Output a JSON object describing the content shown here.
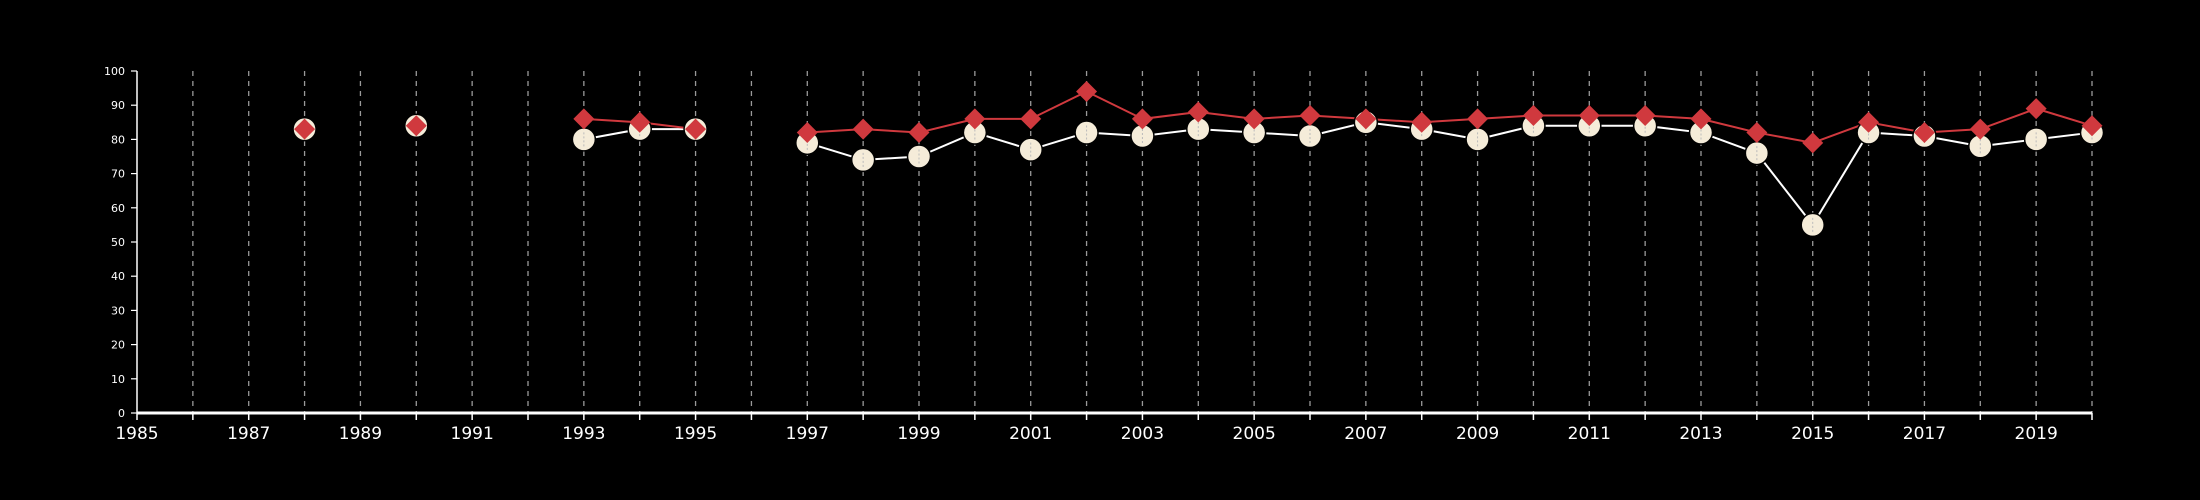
{
  "chart_data": {
    "type": "line",
    "x": [
      1988,
      1990,
      1993,
      1994,
      1995,
      1997,
      1998,
      1999,
      2000,
      2001,
      2002,
      2003,
      2004,
      2005,
      2006,
      2007,
      2008,
      2009,
      2010,
      2011,
      2012,
      2013,
      2014,
      2015,
      2016,
      2017,
      2018,
      2019,
      2020
    ],
    "series": [
      {
        "marker": "circle",
        "color": "#f5ecd9",
        "line_color": "#ffffff",
        "values": [
          83,
          84,
          80,
          83,
          83,
          79,
          74,
          75,
          82,
          77,
          82,
          81,
          83,
          82,
          81,
          85,
          83,
          80,
          84,
          84,
          84,
          82,
          76,
          55,
          82,
          81,
          78,
          80,
          82
        ]
      },
      {
        "marker": "diamond",
        "color": "#d0393e",
        "line_color": "#d0393e",
        "values": [
          83,
          84,
          86,
          85,
          83,
          82,
          83,
          82,
          86,
          86,
          94,
          86,
          88,
          86,
          87,
          86,
          85,
          86,
          87,
          87,
          87,
          86,
          82,
          79,
          85,
          82,
          83,
          89,
          84
        ]
      }
    ],
    "gaps_after_x": [
      1988,
      1990,
      1995
    ],
    "xlim": [
      1985,
      2020
    ],
    "ylim": [
      0,
      100
    ],
    "x_tick_labels": [
      "1985",
      "1987",
      "1989",
      "1991",
      "1993",
      "1995",
      "1997",
      "1999",
      "2001",
      "2003",
      "2005",
      "2007",
      "2009",
      "2011",
      "2013",
      "2015",
      "2017",
      "2019"
    ],
    "y_tick_labels": [
      "0",
      "10",
      "20",
      "30",
      "40",
      "50",
      "60",
      "70",
      "80",
      "90",
      "100"
    ],
    "vertical_grid": "dashed, every year",
    "horizontal_grid": false,
    "legend": "none",
    "title": "",
    "xlabel": "",
    "ylabel": "",
    "background_color": "#000000",
    "axis_color": "#ffffff",
    "grid_color": "#9a9a9a"
  }
}
